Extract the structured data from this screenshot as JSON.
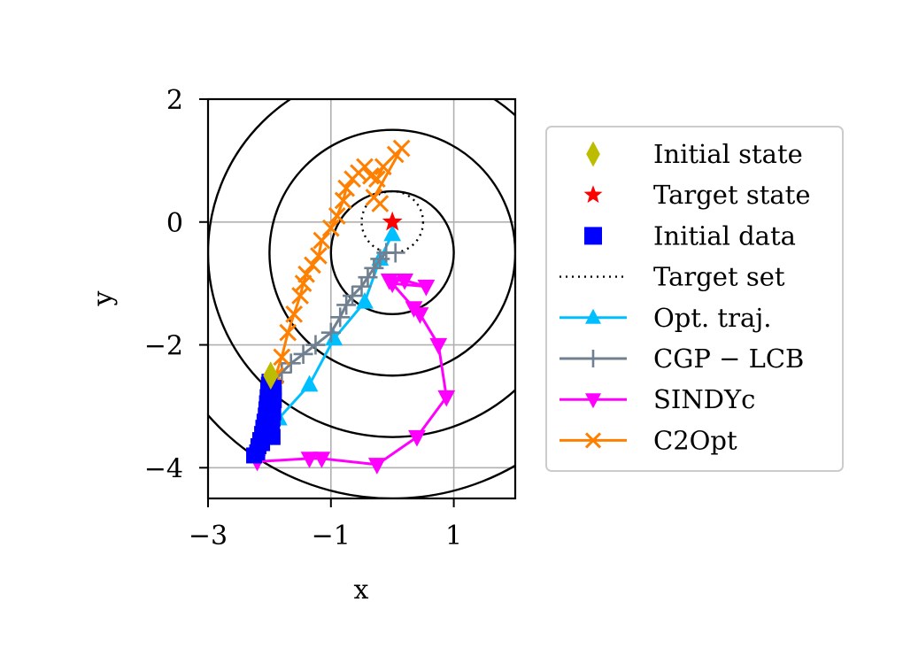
{
  "chart_data": {
    "type": "line",
    "xlabel": "x",
    "ylabel": "y",
    "xlim": [
      -3,
      2
    ],
    "ylim": [
      -4.5,
      2
    ],
    "xticks": [
      {
        "value": -3,
        "label": "−3"
      },
      {
        "value": -1,
        "label": "−1"
      },
      {
        "value": 1,
        "label": "1"
      }
    ],
    "yticks": [
      {
        "value": 2,
        "label": "2"
      },
      {
        "value": 0,
        "label": "0"
      },
      {
        "value": -2,
        "label": "−2"
      },
      {
        "value": -4,
        "label": "−4"
      }
    ],
    "grid": true,
    "legend_position": "outside-right",
    "contours": {
      "center": [
        0,
        -0.5
      ],
      "radii": [
        1.0,
        2.0,
        3.0,
        4.0,
        5.0
      ],
      "color": "#000000"
    },
    "target_set": {
      "center": [
        0,
        0
      ],
      "radius": 0.5,
      "name": "Target set"
    },
    "initial_state": {
      "name": "Initial state",
      "x": -1.98,
      "y": -2.5,
      "color": "#bcbd00"
    },
    "target_state": {
      "name": "Target state",
      "x": 0,
      "y": 0,
      "color": "#ff0000"
    },
    "initial_data": {
      "name": "Initial data",
      "color": "#0000ff",
      "points": [
        [
          -2.2,
          -3.75
        ],
        [
          -2.18,
          -3.65
        ],
        [
          -2.15,
          -3.55
        ],
        [
          -2.12,
          -3.45
        ],
        [
          -2.1,
          -3.35
        ],
        [
          -2.08,
          -3.25
        ],
        [
          -2.06,
          -3.15
        ],
        [
          -2.05,
          -3.05
        ],
        [
          -2.04,
          -2.95
        ],
        [
          -2.03,
          -2.85
        ],
        [
          -2.02,
          -2.75
        ],
        [
          -2.01,
          -2.65
        ],
        [
          -2.0,
          -2.6
        ],
        [
          -1.95,
          -3.5
        ],
        [
          -1.98,
          -3.4
        ],
        [
          -1.96,
          -3.3
        ],
        [
          -1.95,
          -3.2
        ],
        [
          -1.94,
          -3.1
        ],
        [
          -1.94,
          -3.0
        ],
        [
          -1.93,
          -2.9
        ],
        [
          -1.93,
          -2.8
        ],
        [
          -1.93,
          -2.7
        ],
        [
          -2.12,
          -3.6
        ],
        [
          -2.25,
          -3.8
        ],
        [
          -2.05,
          -3.35
        ]
      ]
    },
    "series": [
      {
        "name": "Opt. traj.",
        "color": "#00bfff",
        "marker": "triangle-up",
        "x": [
          -1.98,
          -1.85,
          -1.35,
          -0.95,
          -0.45,
          -0.2,
          0.0
        ],
        "y": [
          -3.3,
          -3.2,
          -2.65,
          -1.9,
          -1.3,
          -0.6,
          -0.2
        ]
      },
      {
        "name": "CGP − LCB",
        "color": "#708090",
        "marker": "plus",
        "x": [
          -1.92,
          -1.8,
          -1.65,
          -1.45,
          -1.25,
          -1.0,
          -0.85,
          -0.75,
          -0.65,
          -0.5,
          -0.4,
          -0.3,
          -0.2,
          -0.1,
          0.05
        ],
        "y": [
          -2.6,
          -2.45,
          -2.3,
          -2.15,
          -2.0,
          -1.8,
          -1.55,
          -1.35,
          -1.2,
          -1.05,
          -0.9,
          -0.75,
          -0.6,
          -0.5,
          -0.5
        ]
      },
      {
        "name": "SINDYc",
        "color": "#ff00ff",
        "marker": "triangle-down",
        "x": [
          -2.2,
          -1.35,
          -1.15,
          -0.25,
          0.4,
          0.88,
          0.75,
          0.45,
          0.35,
          0.0,
          0.55,
          0.2,
          -0.05
        ],
        "y": [
          -3.9,
          -3.85,
          -3.85,
          -3.95,
          -3.5,
          -2.85,
          -2.0,
          -1.5,
          -1.4,
          -1.0,
          -1.05,
          -0.95,
          -0.95
        ]
      },
      {
        "name": "C2Opt",
        "color": "#ff8000",
        "marker": "x",
        "x": [
          -1.9,
          -1.8,
          -1.7,
          -1.6,
          -1.5,
          -1.45,
          -1.4,
          -1.3,
          -1.2,
          -1.15,
          -1.0,
          -0.9,
          -0.8,
          -0.75,
          -0.65,
          -0.55,
          -0.45,
          -0.35,
          -0.25,
          -0.15,
          0.05,
          0.15,
          -0.3,
          -0.2
        ],
        "y": [
          -2.5,
          -2.2,
          -1.8,
          -1.5,
          -1.2,
          -1.0,
          -0.85,
          -0.7,
          -0.55,
          -0.3,
          -0.1,
          0.1,
          0.35,
          0.55,
          0.7,
          0.8,
          0.9,
          0.75,
          0.7,
          0.9,
          1.1,
          1.2,
          0.4,
          0.3
        ]
      }
    ],
    "legend": [
      {
        "key": "initial_state",
        "label": "Initial state"
      },
      {
        "key": "target_state",
        "label": "Target state"
      },
      {
        "key": "initial_data",
        "label": "Initial data"
      },
      {
        "key": "target_set",
        "label": "Target set"
      },
      {
        "key": "series.0",
        "label": "Opt. traj."
      },
      {
        "key": "series.1",
        "label": "CGP − LCB"
      },
      {
        "key": "series.2",
        "label": "SINDYc"
      },
      {
        "key": "series.3",
        "label": "C2Opt"
      }
    ]
  }
}
